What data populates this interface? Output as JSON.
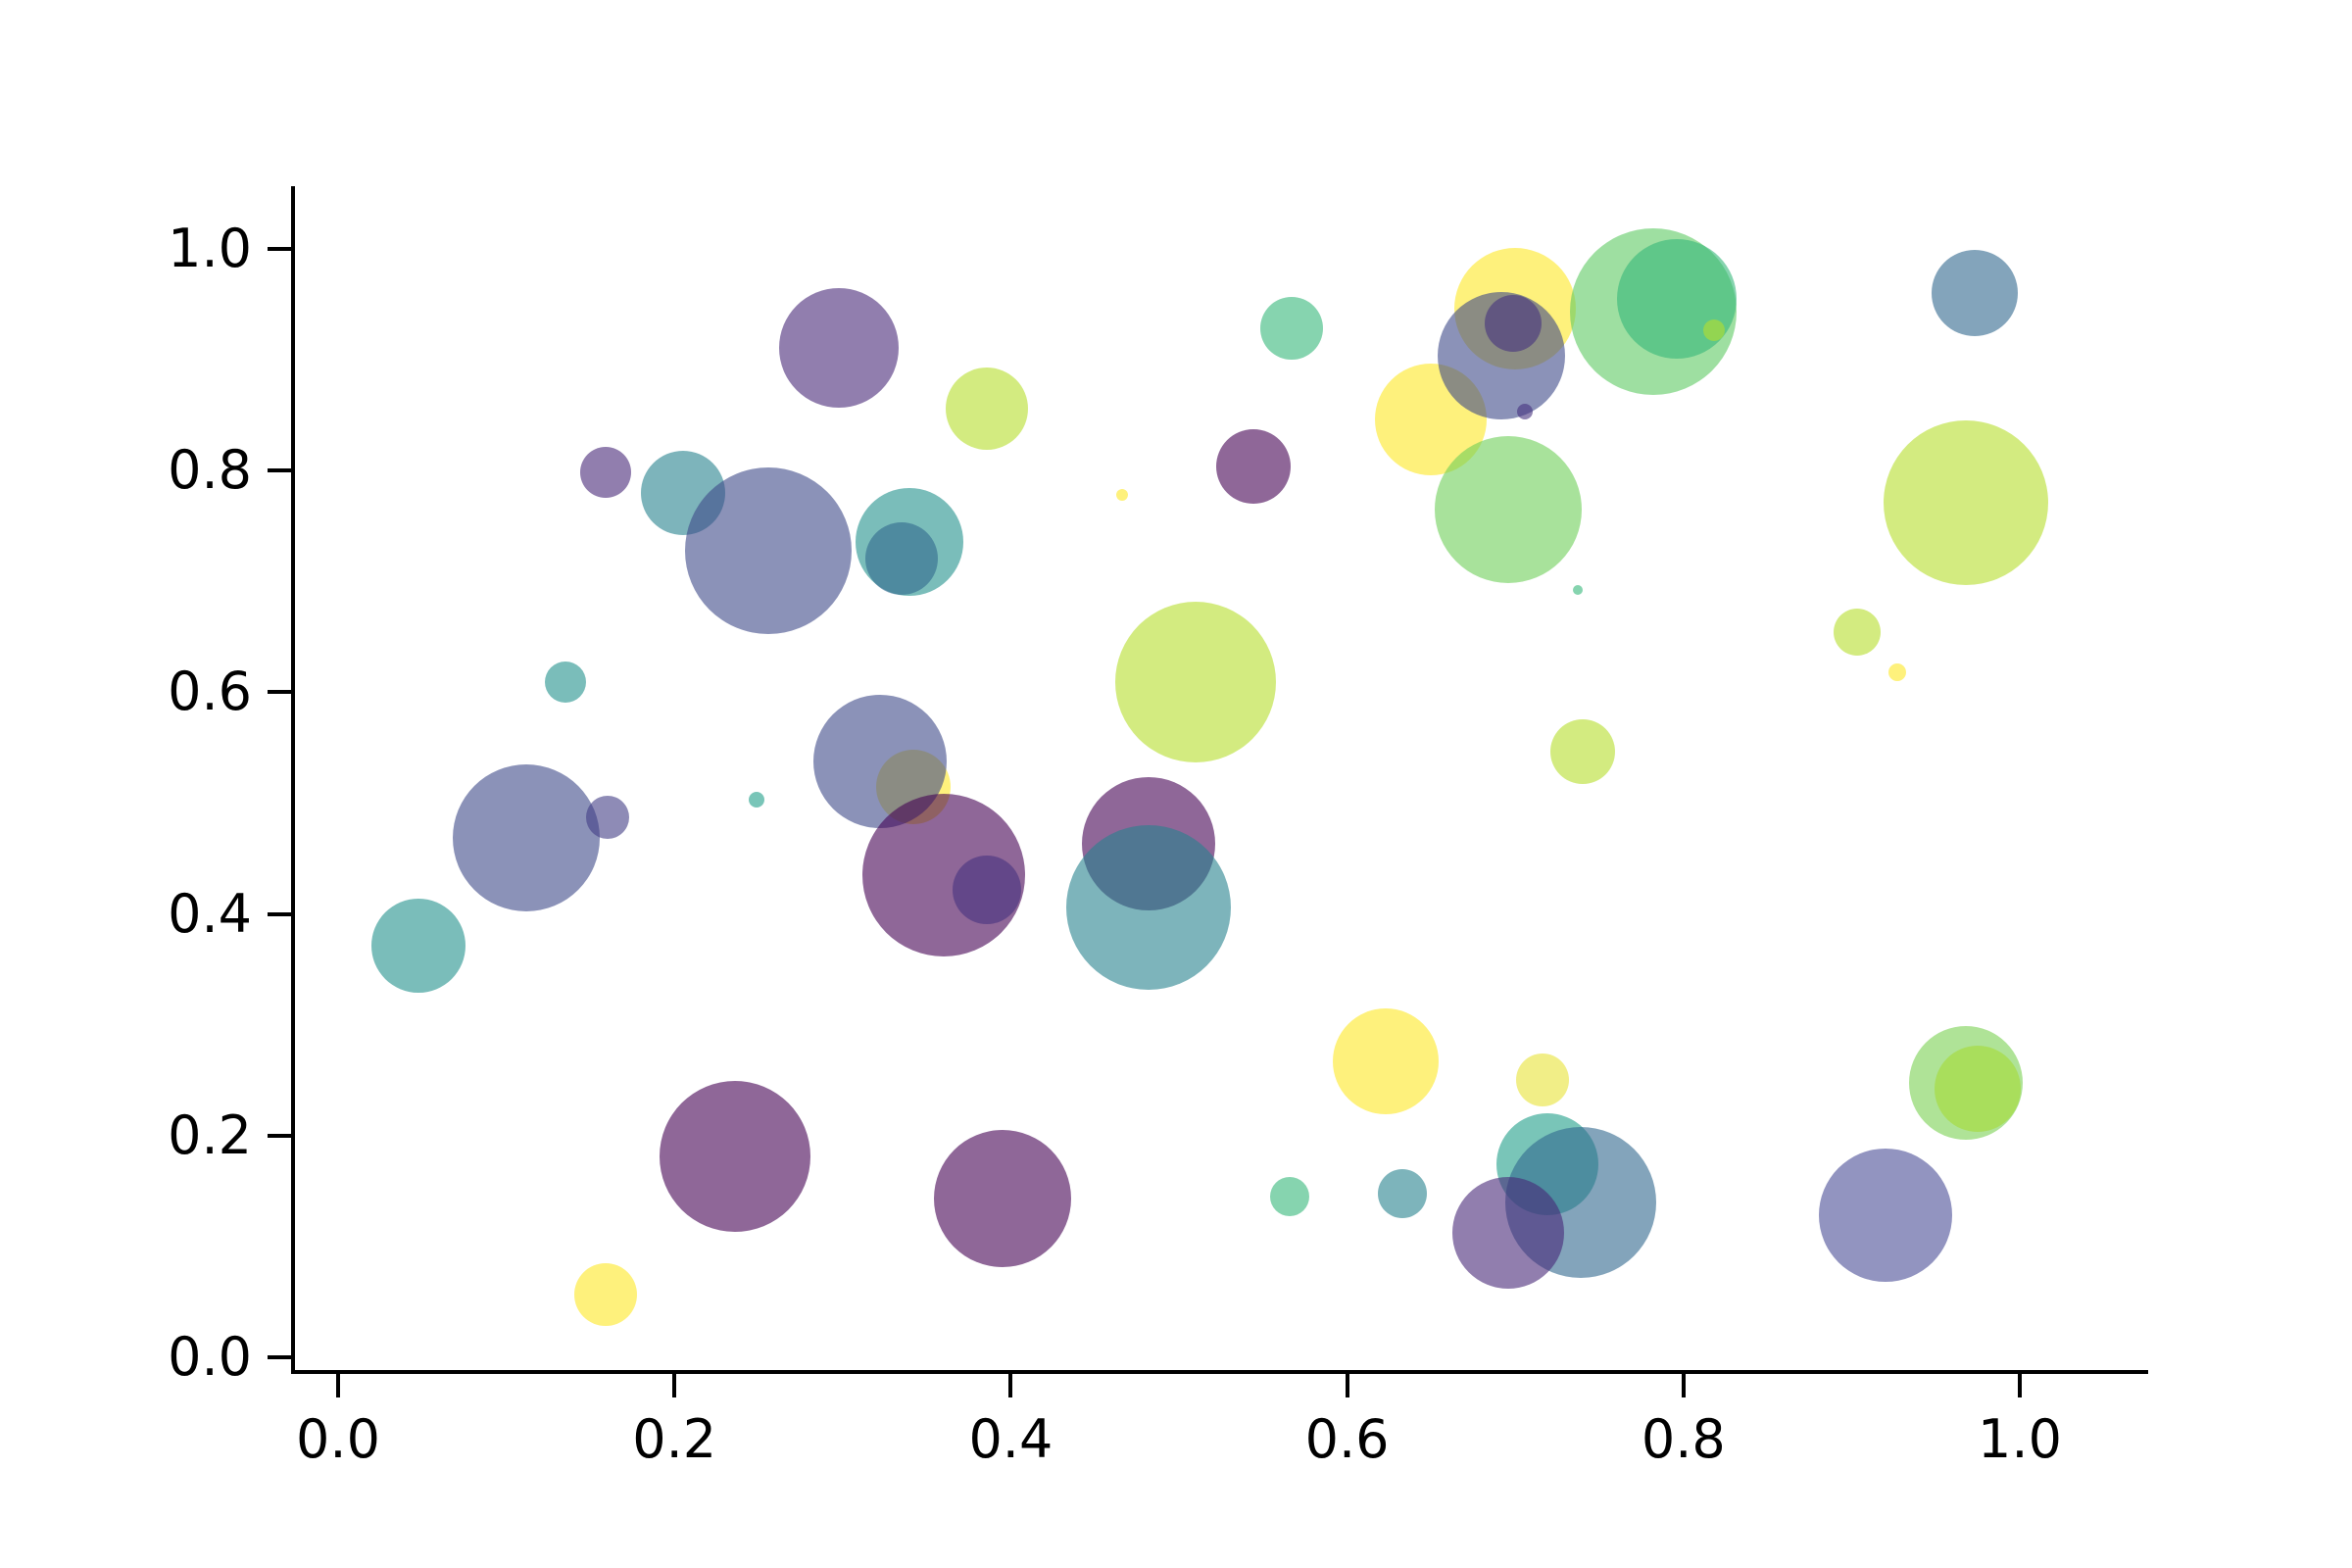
{
  "chart_data": {
    "type": "scatter",
    "subtype": "bubble",
    "title": "",
    "xlabel": "",
    "ylabel": "",
    "xlim": [
      -0.03,
      1.07
    ],
    "ylim": [
      -0.01,
      1.06
    ],
    "x_ticks": [
      "0.0",
      "0.2",
      "0.4",
      "0.6",
      "0.8",
      "1.0"
    ],
    "y_ticks": [
      "0.0",
      "0.2",
      "0.4",
      "0.6",
      "0.8",
      "1.0"
    ],
    "grid": false,
    "legend": "none",
    "marker_alpha": 0.6,
    "axis_color": "#000000",
    "background_color": "#ffffff",
    "colormap": "viridis",
    "points": [
      {
        "x": 0.342,
        "y": 0.515,
        "r": 38,
        "color": "#fde725"
      },
      {
        "x": 0.322,
        "y": 0.538,
        "r": 68,
        "color": "#3e4989"
      },
      {
        "x": 0.112,
        "y": 0.469,
        "r": 75,
        "color": "#3e4989"
      },
      {
        "x": 0.16,
        "y": 0.487,
        "r": 22,
        "color": "#433e85"
      },
      {
        "x": 0.159,
        "y": 0.798,
        "r": 26,
        "color": "#482878"
      },
      {
        "x": 0.205,
        "y": 0.78,
        "r": 43,
        "color": "#26828e"
      },
      {
        "x": 0.256,
        "y": 0.728,
        "r": 85,
        "color": "#3e4989"
      },
      {
        "x": 0.34,
        "y": 0.736,
        "r": 55,
        "color": "#21918c"
      },
      {
        "x": 0.335,
        "y": 0.721,
        "r": 37,
        "color": "#31688e"
      },
      {
        "x": 0.135,
        "y": 0.609,
        "r": 21,
        "color": "#21918c"
      },
      {
        "x": 0.298,
        "y": 0.911,
        "r": 61,
        "color": "#482878"
      },
      {
        "x": 0.386,
        "y": 0.856,
        "r": 42,
        "color": "#b5de2b"
      },
      {
        "x": 0.567,
        "y": 0.928,
        "r": 32,
        "color": "#35b779"
      },
      {
        "x": 0.544,
        "y": 0.804,
        "r": 38,
        "color": "#440154"
      },
      {
        "x": 0.466,
        "y": 0.778,
        "r": 6,
        "color": "#fde725"
      },
      {
        "x": 0.65,
        "y": 0.846,
        "r": 57,
        "color": "#fde725"
      },
      {
        "x": 0.7,
        "y": 0.946,
        "r": 62,
        "color": "#fde725"
      },
      {
        "x": 0.692,
        "y": 0.904,
        "r": 65,
        "color": "#3e4989"
      },
      {
        "x": 0.699,
        "y": 0.933,
        "r": 29,
        "color": "#46327e"
      },
      {
        "x": 0.706,
        "y": 0.853,
        "r": 8,
        "color": "#46327e"
      },
      {
        "x": 0.782,
        "y": 0.943,
        "r": 85,
        "color": "#5ec962"
      },
      {
        "x": 0.796,
        "y": 0.955,
        "r": 61,
        "color": "#35b779"
      },
      {
        "x": 0.818,
        "y": 0.927,
        "r": 11,
        "color": "#b5de2b"
      },
      {
        "x": 0.973,
        "y": 0.96,
        "r": 44,
        "color": "#31688e"
      },
      {
        "x": 0.696,
        "y": 0.765,
        "r": 75,
        "color": "#6ece58"
      },
      {
        "x": 0.968,
        "y": 0.771,
        "r": 84,
        "color": "#b5de2b"
      },
      {
        "x": 0.737,
        "y": 0.692,
        "r": 5,
        "color": "#35b779"
      },
      {
        "x": 0.903,
        "y": 0.654,
        "r": 24,
        "color": "#b5de2b"
      },
      {
        "x": 0.927,
        "y": 0.618,
        "r": 9,
        "color": "#fde725"
      },
      {
        "x": 0.74,
        "y": 0.546,
        "r": 33,
        "color": "#b5de2b"
      },
      {
        "x": 0.51,
        "y": 0.609,
        "r": 82,
        "color": "#b5de2b"
      },
      {
        "x": 0.36,
        "y": 0.435,
        "r": 83,
        "color": "#440154"
      },
      {
        "x": 0.386,
        "y": 0.422,
        "r": 35,
        "color": "#46327e"
      },
      {
        "x": 0.249,
        "y": 0.503,
        "r": 8,
        "color": "#1f9e89"
      },
      {
        "x": 0.048,
        "y": 0.371,
        "r": 48,
        "color": "#21918c"
      },
      {
        "x": 0.482,
        "y": 0.463,
        "r": 68,
        "color": "#440154"
      },
      {
        "x": 0.482,
        "y": 0.406,
        "r": 84,
        "color": "#26828e"
      },
      {
        "x": 0.236,
        "y": 0.181,
        "r": 77,
        "color": "#440154"
      },
      {
        "x": 0.159,
        "y": 0.057,
        "r": 32,
        "color": "#fde725"
      },
      {
        "x": 0.395,
        "y": 0.143,
        "r": 70,
        "color": "#440154"
      },
      {
        "x": 0.566,
        "y": 0.145,
        "r": 20,
        "color": "#35b779"
      },
      {
        "x": 0.623,
        "y": 0.267,
        "r": 54,
        "color": "#fde725"
      },
      {
        "x": 0.633,
        "y": 0.148,
        "r": 25,
        "color": "#26828e"
      },
      {
        "x": 0.716,
        "y": 0.25,
        "r": 27,
        "color": "#e8e337"
      },
      {
        "x": 0.719,
        "y": 0.174,
        "r": 52,
        "color": "#1f9e89"
      },
      {
        "x": 0.739,
        "y": 0.14,
        "r": 77,
        "color": "#31688e"
      },
      {
        "x": 0.696,
        "y": 0.112,
        "r": 57,
        "color": "#482878"
      },
      {
        "x": 0.92,
        "y": 0.128,
        "r": 68,
        "color": "#4a4d96"
      },
      {
        "x": 0.968,
        "y": 0.248,
        "r": 58,
        "color": "#7ad151"
      },
      {
        "x": 0.975,
        "y": 0.242,
        "r": 44,
        "color": "#a5db36"
      }
    ]
  }
}
